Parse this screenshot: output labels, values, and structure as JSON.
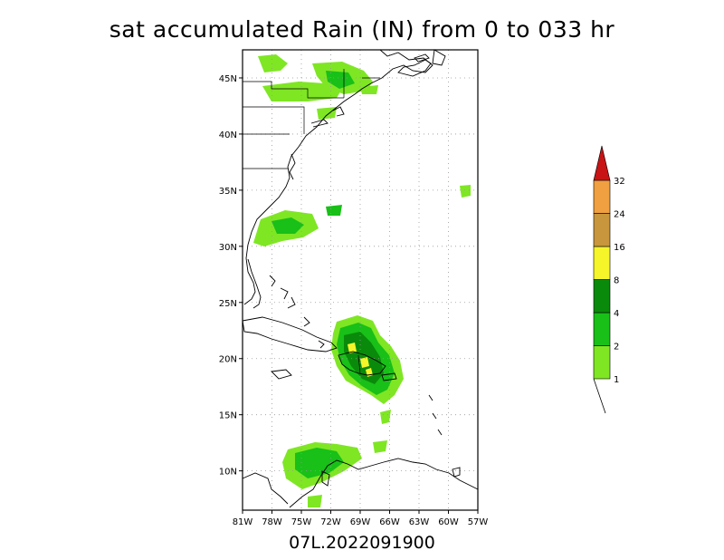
{
  "title": "sat accumulated Rain (IN) from 0 to 033 hr",
  "footer": "07L.2022091900",
  "map": {
    "lat_ticks": [
      "45N",
      "40N",
      "35N",
      "30N",
      "25N",
      "20N",
      "15N",
      "10N"
    ],
    "lon_ticks": [
      "81W",
      "78W",
      "75W",
      "72W",
      "69W",
      "66W",
      "63W",
      "60W",
      "57W"
    ],
    "lat_range": [
      6.5,
      47.5
    ],
    "lon_range": [
      -81,
      -57
    ]
  },
  "legend": {
    "labels": [
      "1",
      "2",
      "4",
      "8",
      "16",
      "24",
      "32"
    ],
    "colors": [
      "#7fe624",
      "#18c018",
      "#0a8a0a",
      "#f5f52a",
      "#c8963c",
      "#f0a040",
      "#c81414"
    ]
  },
  "colors": {
    "light_green": "#7fe624",
    "green": "#18c018",
    "dark_green": "#0a8a0a",
    "yellow": "#f5f52a"
  }
}
